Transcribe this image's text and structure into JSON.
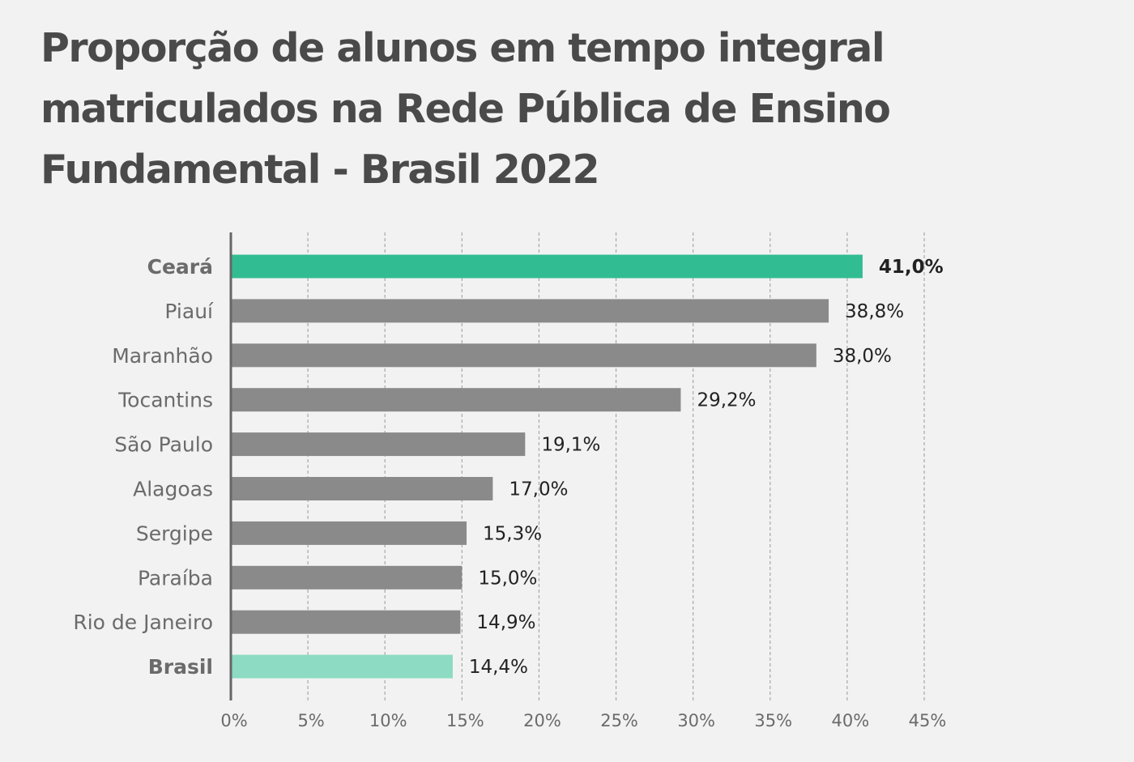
{
  "chart_data": {
    "type": "bar",
    "orientation": "horizontal",
    "title_lines": [
      "Proporção de alunos em tempo integral",
      "matriculados na Rede Pública de Ensino",
      "Fundamental - Brasil 2022"
    ],
    "categories": [
      "Ceará",
      "Piauí",
      "Maranhão",
      "Tocantins",
      "São Paulo",
      "Alagoas",
      "Sergipe",
      "Paraíba",
      "Rio de Janeiro",
      "Brasil"
    ],
    "values": [
      41.0,
      38.8,
      38.0,
      29.2,
      19.1,
      17.0,
      15.3,
      15.0,
      14.9,
      14.4
    ],
    "value_labels": [
      "41,0%",
      "38,8%",
      "38,0%",
      "29,2%",
      "19,1%",
      "17,0%",
      "15,3%",
      "15,0%",
      "14,9%",
      "14,4%"
    ],
    "highlight": {
      "Ceará": "primary",
      "Brasil": "secondary"
    },
    "xlim": [
      0,
      45
    ],
    "xticks": [
      0,
      5,
      10,
      15,
      20,
      25,
      30,
      35,
      40,
      45
    ],
    "xtick_labels": [
      "0%",
      "5%",
      "10%",
      "15%",
      "20%",
      "25%",
      "30%",
      "35%",
      "40%",
      "45%"
    ],
    "xlabel": "",
    "ylabel": "",
    "grid": "vertical dashed",
    "colors": {
      "primary": "#32bc92",
      "secondary": "#8cdbc2",
      "default": "#8a8a8a",
      "primary_label": "#1aa878",
      "axis": "#666666",
      "grid": "#a8a8a8"
    }
  }
}
